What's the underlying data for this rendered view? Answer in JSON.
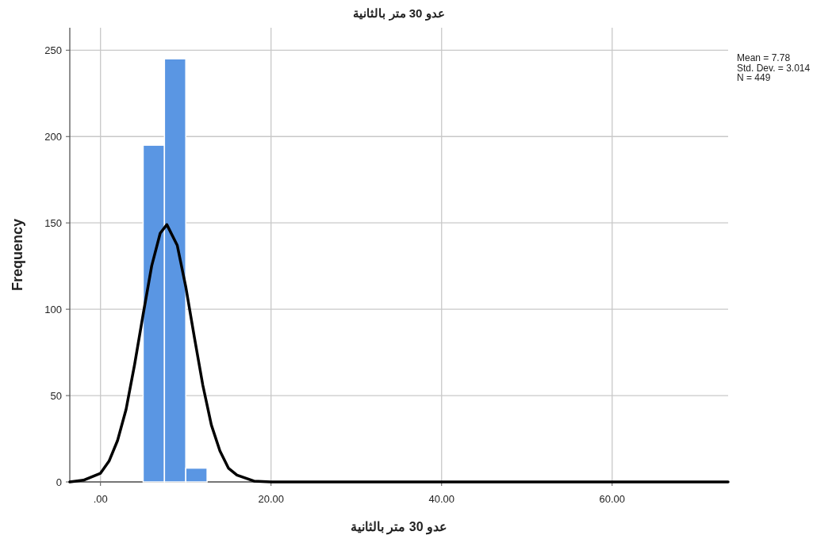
{
  "chart_data": {
    "type": "histogram",
    "title": "عدو 30 متر بالثانية",
    "xlabel": "عدو 30 متر بالثانية",
    "ylabel": "Frequency",
    "xlim": [
      -3.6,
      73.6
    ],
    "ylim": [
      0,
      263
    ],
    "xticks": [
      {
        "value": 0,
        "label": ".00"
      },
      {
        "value": 20,
        "label": "20.00"
      },
      {
        "value": 40,
        "label": "40.00"
      },
      {
        "value": 60,
        "label": "60.00"
      }
    ],
    "yticks": [
      0,
      50,
      100,
      150,
      200,
      250
    ],
    "grid": true,
    "series": [
      {
        "color": "#5a96e3",
        "bins": [
          5,
          7.5,
          10,
          12.5
        ],
        "values": [
          195,
          245,
          8
        ]
      },
      {
        "type": "line",
        "color": "#000000",
        "x": [
          -3.6,
          -2,
          0,
          1,
          2,
          3,
          4,
          5,
          6,
          7,
          7.78,
          9,
          10,
          11,
          12,
          13,
          14,
          15,
          16,
          18,
          20,
          40,
          73.6
        ],
        "values": [
          0,
          1,
          5,
          12,
          24,
          42,
          68,
          97,
          125,
          144,
          149,
          137,
          113,
          84,
          56,
          33,
          18,
          8,
          4,
          0.5,
          0,
          0,
          0
        ]
      }
    ],
    "annotations": [
      "Mean = 7.78",
      "Std. Dev. = 3.014",
      "N = 449"
    ]
  }
}
